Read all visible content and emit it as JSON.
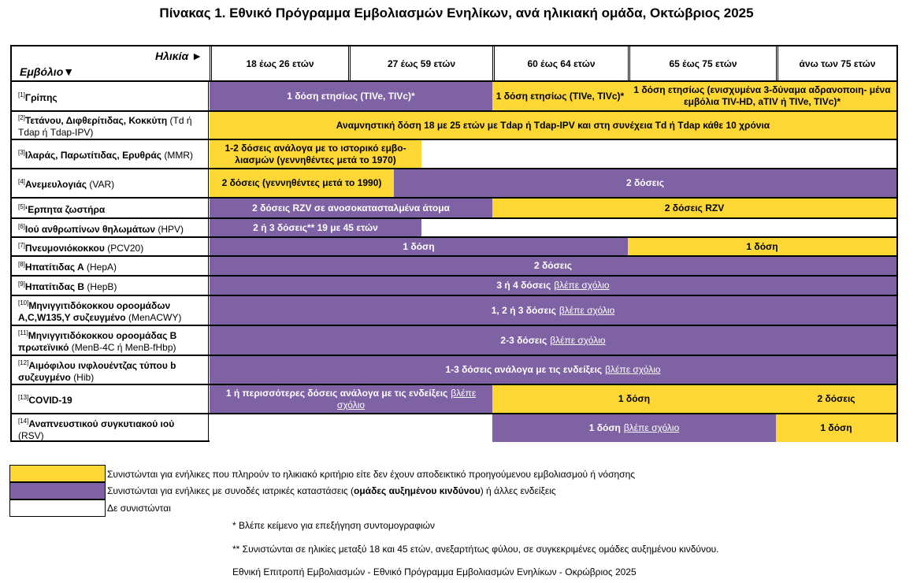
{
  "title": "Πίνακας 1. Εθνικό Πρόγραμμα Εμβολιασμών Ενηλίκων, ανά ηλικιακή ομάδα, Οκτώβριος 2025",
  "header": {
    "age_label": "Ηλικία ►",
    "vaccine_label": "Εμβόλιο▼",
    "columns": [
      "18 έως 26 ετών",
      "27 έως 59 ετών",
      "60 έως 64 ετών",
      "65 έως 75 ετών",
      "άνω των 75 ετών"
    ]
  },
  "colors": {
    "yellow": "#fdd835",
    "purple": "#7f62a4",
    "white": "#ffffff"
  },
  "rows": [
    {
      "num": "[1]",
      "name": "Γρίπης",
      "code": "",
      "segs": [
        {
          "t": "1 δόση ετησίως (TIVe, TIVc)*"
        },
        {
          "t": "1 δόση ετησίως (TIVe, TIVc)*"
        },
        {
          "t": "1 δόση ετησίως (ενισχυμένα 3-δύναμα αδρανοποιη- μένα εμβόλια TIV-HD, aTIV ή TIVe, TIVc)*"
        }
      ]
    },
    {
      "num": "[2]",
      "name": "Τετάνου, Διφθερίτιδας, Κοκκύτη",
      "code": "(Td ή Tdap ή Tdap-IPV)",
      "segs": [
        {
          "t": "Αναμνηστική δόση 18 με 25 ετών με Tdap ή Tdap-IPV και στη συνέχεια Td ή Tdap κάθε 10 χρόνια"
        }
      ]
    },
    {
      "num": "[3]",
      "name": "Ιλαράς, Παρωτίτιδας, Ερυθράς",
      "code": "(MMR)",
      "segs": [
        {
          "t": "1-2 δόσεις ανάλογα με το ιστορικό εμβο- λιασμών (γεννηθέντες μετά το 1970)"
        }
      ]
    },
    {
      "num": "[4]",
      "name": "Ανεμευλογιάς",
      "code": "(VAR)",
      "segs": [
        {
          "t": "2 δόσεις (γεννηθέντες μετά το 1990)"
        },
        {
          "t": "2 δόσεις"
        }
      ]
    },
    {
      "num": "[5]",
      "name": "‘Ερπητα ζωστήρα",
      "code": "",
      "segs": [
        {
          "t": "2 δόσεις RZV σε ανοσοκατασταλμένα άτομα"
        },
        {
          "t": "2 δόσεις RZV"
        }
      ]
    },
    {
      "num": "[6]",
      "name": "Ιού ανθρωπίνων θηλωμάτων",
      "code": "(HPV)",
      "segs": [
        {
          "t": "2 ή 3 δόσεις** 19 με 45 ετών"
        }
      ]
    },
    {
      "num": "[7]",
      "name": "Πνευμονιόκοκκου",
      "code": "(PCV20)",
      "segs": [
        {
          "t": "1 δόση"
        },
        {
          "t": "1 δόση"
        }
      ]
    },
    {
      "num": "[8]",
      "name": "Ηπατίτιδας Α",
      "code": "(HepA)",
      "segs": [
        {
          "t": "2 δόσεις"
        }
      ]
    },
    {
      "num": "[9]",
      "name": "Ηπατίτιδας Β",
      "code": "(HepB)",
      "segs": [
        {
          "t": "3 ή 4 δόσεις",
          "link": "βλέπε σχόλιο"
        }
      ]
    },
    {
      "num": "[10]",
      "name": "Μηνιγγιτιδόκοκκου οροομάδων A,C,W135,Y συζευγμένο",
      "code": "(MenACWY)",
      "segs": [
        {
          "t": "1, 2 ή 3 δόσεις",
          "link": "βλέπε σχόλιο"
        }
      ]
    },
    {
      "num": "[11]",
      "name": "Μηνιγγιτιδόκοκκου οροομάδας Β πρωτεϊνικό",
      "code": "(MenB-4C ή MenB-fHbp)",
      "segs": [
        {
          "t": "2-3  δόσεις",
          "link": "βλέπε σχόλιο"
        }
      ]
    },
    {
      "num": "[12]",
      "name": "Αιμόφιλου ινφλουέντζας τύπου b συζευγμένο",
      "code": "(Hib)",
      "segs": [
        {
          "t": "1-3 δόσεις ανάλογα με τις ενδείξεις",
          "link": "βλέπε σχόλιο"
        }
      ]
    },
    {
      "num": "[13]",
      "name": "COVID-19",
      "code": "",
      "segs": [
        {
          "t": "1 ή περισσότερες δόσεις ανάλογα με τις ενδείξεις",
          "link": "βλέπε σχόλιο"
        },
        {
          "t": "1 δόση"
        },
        {
          "t": "2 δόσεις"
        }
      ]
    },
    {
      "num": "[14]",
      "name": "Αναπνευστικού συγκυτιακού ιού",
      "code": "(RSV)",
      "segs": [
        {
          "t": "1 δόση",
          "link": "βλέπε σχόλιο"
        },
        {
          "t": "1 δόση"
        }
      ]
    }
  ],
  "legend": [
    "Συνιστώνται για ενήλικες που πληρούν το ηλικιακό κριτήριο είτε δεν έχουν αποδεικτικό προηγούμενου εμβολιασμού ή νόσησης",
    "Συνιστώνται για ενήλικες με συνοδές ιατρικές καταστάσεις (",
    "ομάδες αυξημένου κινδύνου",
    ") ή άλλες ενδείξεις",
    "Δε συνιστώνται"
  ],
  "notes": [
    "*  Βλέπε κείμενο για επεξήγηση συντομογραφιών",
    "** Συνιστώνται σε ηλικίες μεταξύ 18 και 45 ετών, ανεξαρτήτως φύλου, σε συγκεκριμένες ομάδες αυξημένου κινδύνου.",
    "Εθνική Επιτροπή Εμβολιασμών - Εθνικό Πρόγραμμα Εμβολιασμών Ενηλίκων  -  Οκρώβριος 2025"
  ]
}
